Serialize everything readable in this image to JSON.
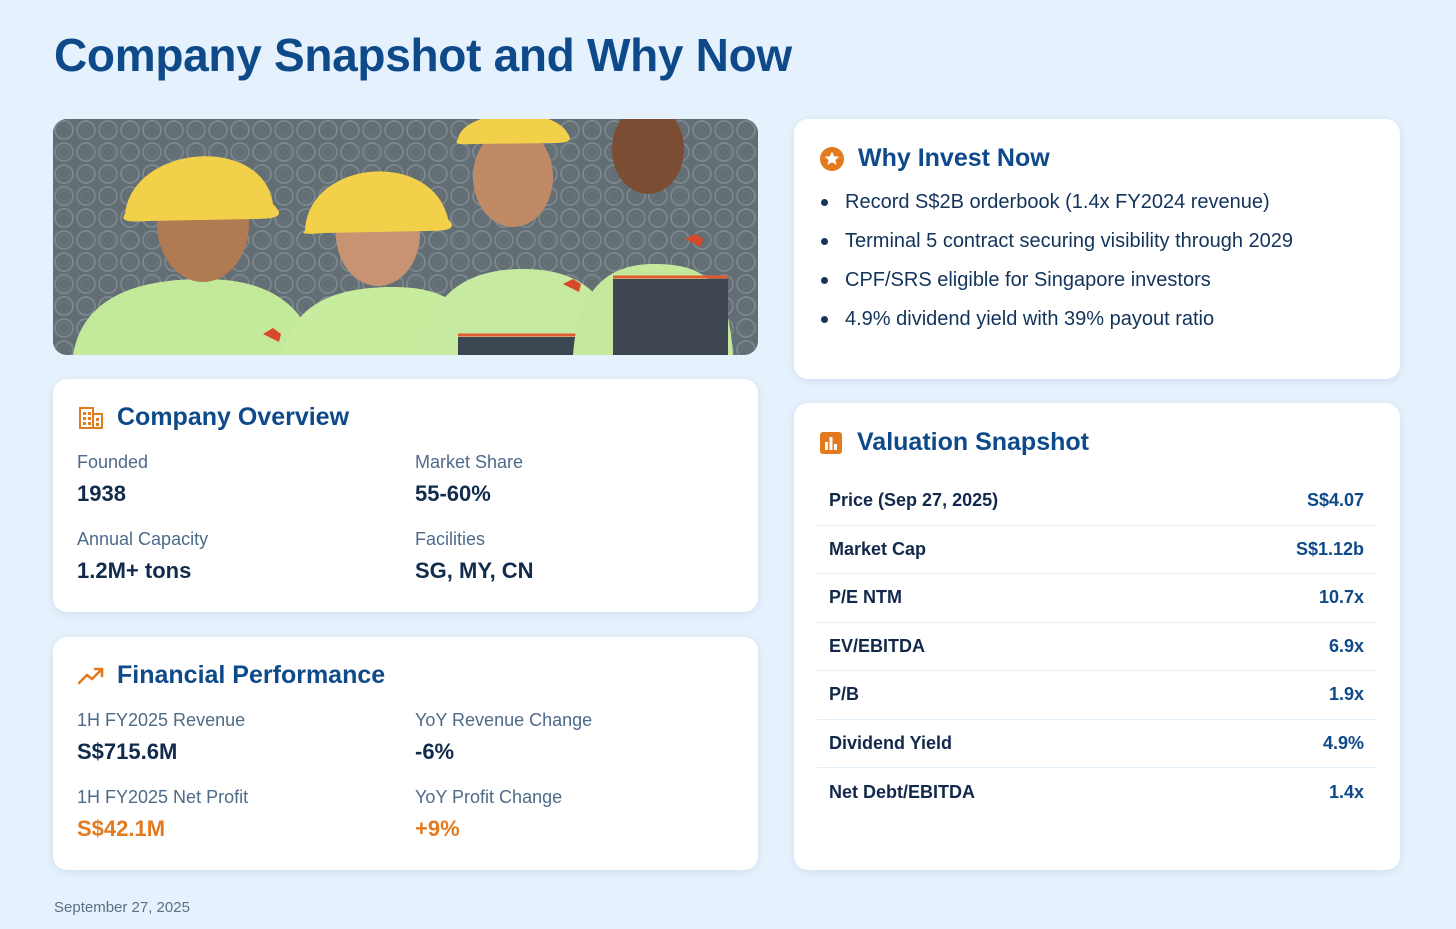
{
  "page": {
    "title": "Company Snapshot and Why Now",
    "date": "September 27, 2025"
  },
  "hero_image": {
    "icon": "workers-photo"
  },
  "overview": {
    "title": "Company Overview",
    "icon": "building-icon",
    "stats": [
      {
        "label": "Founded",
        "value": "1938"
      },
      {
        "label": "Market Share",
        "value": "55-60%"
      },
      {
        "label": "Annual Capacity",
        "value": "1.2M+ tons"
      },
      {
        "label": "Facilities",
        "value": "SG, MY, CN"
      }
    ]
  },
  "financial": {
    "title": "Financial Performance",
    "icon": "trending-up-icon",
    "stats": [
      {
        "label": "1H FY2025 Revenue",
        "value": "S$715.6M"
      },
      {
        "label": "YoY Revenue Change",
        "value": "-6%"
      },
      {
        "label": "1H FY2025 Net Profit",
        "value": "S$42.1M"
      },
      {
        "label": "YoY Profit Change",
        "value": "+9%"
      }
    ]
  },
  "why_invest": {
    "title": "Why Invest Now",
    "icon": "star-icon",
    "bullets": [
      "Record S$2B orderbook (1.4x FY2024 revenue)",
      "Terminal 5 contract securing visibility through 2029",
      "CPF/SRS eligible for Singapore investors",
      "4.9% dividend yield with 39% payout ratio"
    ]
  },
  "valuation": {
    "title": "Valuation Snapshot",
    "icon": "bar-chart-icon",
    "rows": [
      {
        "label": "Price (Sep 27, 2025)",
        "value": "S$4.07"
      },
      {
        "label": "Market Cap",
        "value": "S$1.12b"
      },
      {
        "label": "P/E NTM",
        "value": "10.7x"
      },
      {
        "label": "EV/EBITDA",
        "value": "6.9x"
      },
      {
        "label": "P/B",
        "value": "1.9x"
      },
      {
        "label": "Dividend Yield",
        "value": "4.9%"
      },
      {
        "label": "Net Debt/EBITDA",
        "value": "1.4x"
      }
    ]
  },
  "colors": {
    "background": "#e5f1fc",
    "title_blue": "#0e4a8a",
    "accent_orange": "#e37a1e",
    "card": "#ffffff"
  }
}
